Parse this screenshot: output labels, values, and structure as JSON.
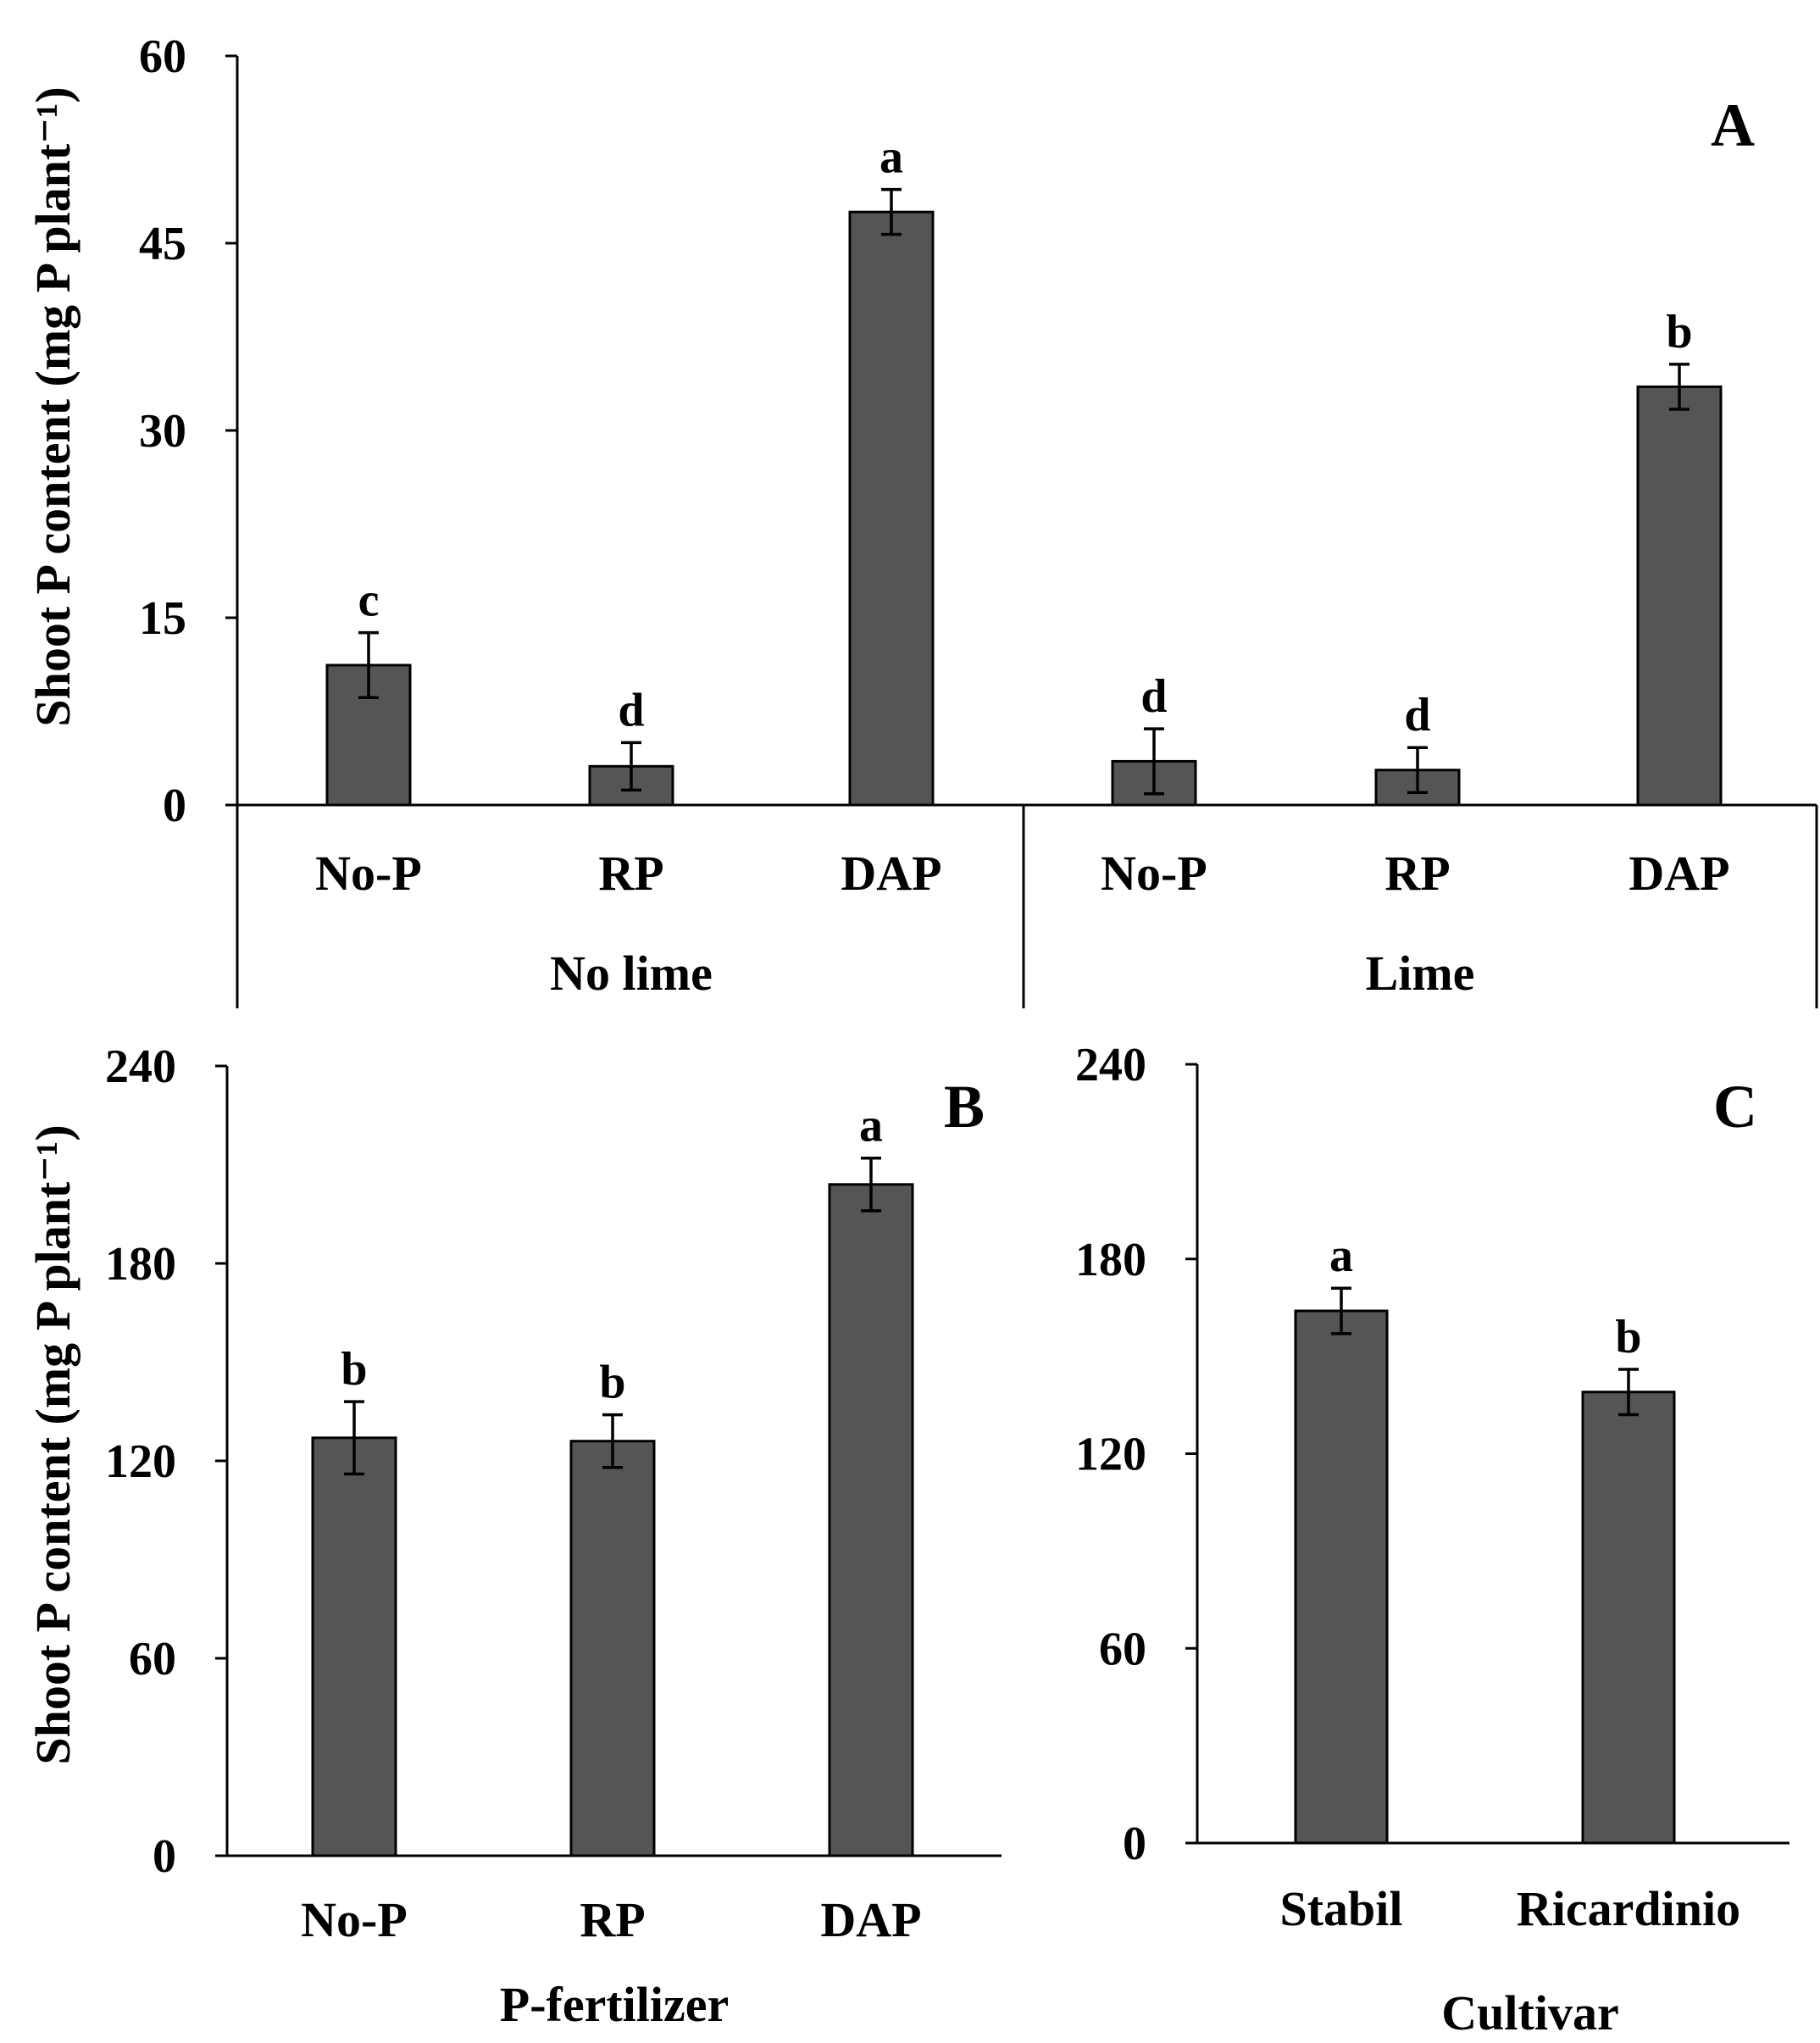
{
  "colors": {
    "bar": "#555555",
    "axis": "#000000",
    "background": "#ffffff"
  },
  "chart_data": [
    {
      "panel": "A",
      "type": "bar",
      "ylabel": "Shoot P content (mg P plant⁻¹)",
      "ylim": [
        0,
        60
      ],
      "yticks": [
        0,
        15,
        30,
        45,
        60
      ],
      "groups": [
        "No lime",
        "Lime"
      ],
      "categories": [
        "No-P",
        "RP",
        "DAP",
        "No-P",
        "RP",
        "DAP"
      ],
      "values": [
        11.2,
        3.1,
        47.5,
        3.5,
        2.8,
        33.5
      ],
      "errors": [
        2.6,
        1.9,
        1.8,
        2.6,
        1.8,
        1.8
      ],
      "significance": [
        "c",
        "d",
        "a",
        "d",
        "d",
        "b"
      ]
    },
    {
      "panel": "B",
      "type": "bar",
      "xlabel": "P-fertilizer",
      "ylabel": "Shoot P content (mg P plant⁻¹)",
      "ylim": [
        0,
        240
      ],
      "yticks": [
        0,
        60,
        120,
        180,
        240
      ],
      "categories": [
        "No-P",
        "RP",
        "DAP"
      ],
      "values": [
        127,
        126,
        204
      ],
      "errors": [
        11,
        8,
        8
      ],
      "significance": [
        "b",
        "b",
        "a"
      ]
    },
    {
      "panel": "C",
      "type": "bar",
      "xlabel": "Cultivar",
      "ylim": [
        0,
        240
      ],
      "yticks": [
        0,
        60,
        120,
        180,
        240
      ],
      "categories": [
        "Stabil",
        "Ricardinio"
      ],
      "values": [
        164,
        139
      ],
      "errors": [
        7,
        7
      ],
      "significance": [
        "a",
        "b"
      ]
    }
  ]
}
